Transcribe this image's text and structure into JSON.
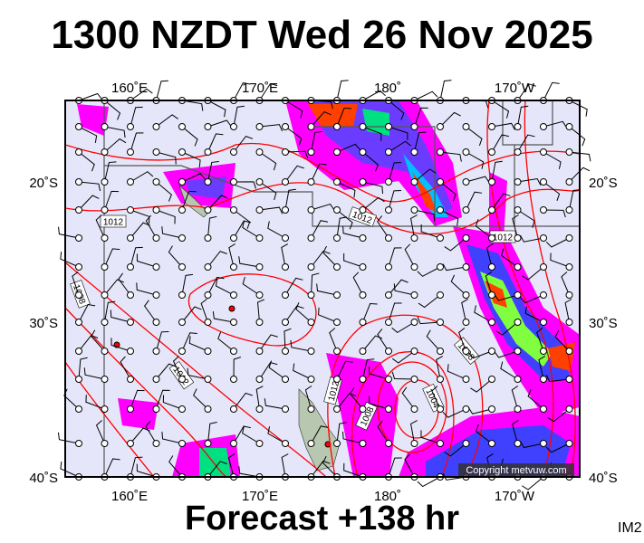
{
  "title": "1300 NZDT Wed 26 Nov 2025",
  "footer": "Forecast +138 hr",
  "image_id_label": "IM2",
  "copyright": "Copyright metvuw.com",
  "axes": {
    "top_lon_labels": [
      "160˚E",
      "170˚E",
      "180˚",
      "170˚W"
    ],
    "bottom_lon_labels": [
      "160˚E",
      "170˚E",
      "180˚",
      "170˚W"
    ],
    "left_lat_labels": [
      "20˚S",
      "30˚S",
      "40˚S"
    ],
    "right_lat_labels": [
      "20˚S",
      "30˚S",
      "40˚S"
    ]
  },
  "isobar_labels": [
    "1012",
    "1012",
    "1012",
    "1008",
    "1012",
    "1012",
    "1008",
    "1008",
    "1004"
  ],
  "colors": {
    "ocean": "#e6e6fa",
    "isobar": "#ff0000",
    "land": "#b8c8b0",
    "precip_light": "#ff00ff",
    "precip_mid": "#4040ff",
    "precip_heavy": "#ff4000"
  }
}
